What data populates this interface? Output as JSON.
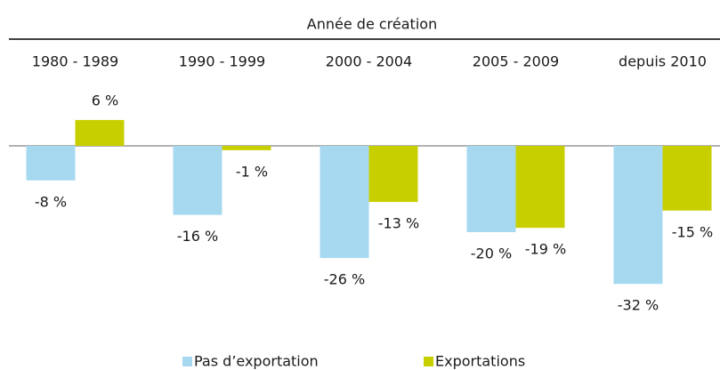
{
  "chart_data": {
    "type": "bar",
    "title": "Année de création",
    "categories": [
      "1980 - 1989",
      "1990 - 1999",
      "2000 - 2004",
      "2005 - 2009",
      "depuis 2010"
    ],
    "series": [
      {
        "name": "Pas d’exportation",
        "color": "#a6d8f0",
        "values": [
          -8,
          -16,
          -26,
          -20,
          -32
        ],
        "value_labels": [
          "-8 %",
          "-16 %",
          "-26 %",
          "-20 %",
          "-32 %"
        ]
      },
      {
        "name": "Exportations",
        "color": "#c8cf00",
        "values": [
          6,
          -1,
          -13,
          -19,
          -15
        ],
        "value_labels": [
          "6 %",
          "-1 %",
          "-13 %",
          "-19 %",
          "-15 %"
        ]
      }
    ]
  }
}
